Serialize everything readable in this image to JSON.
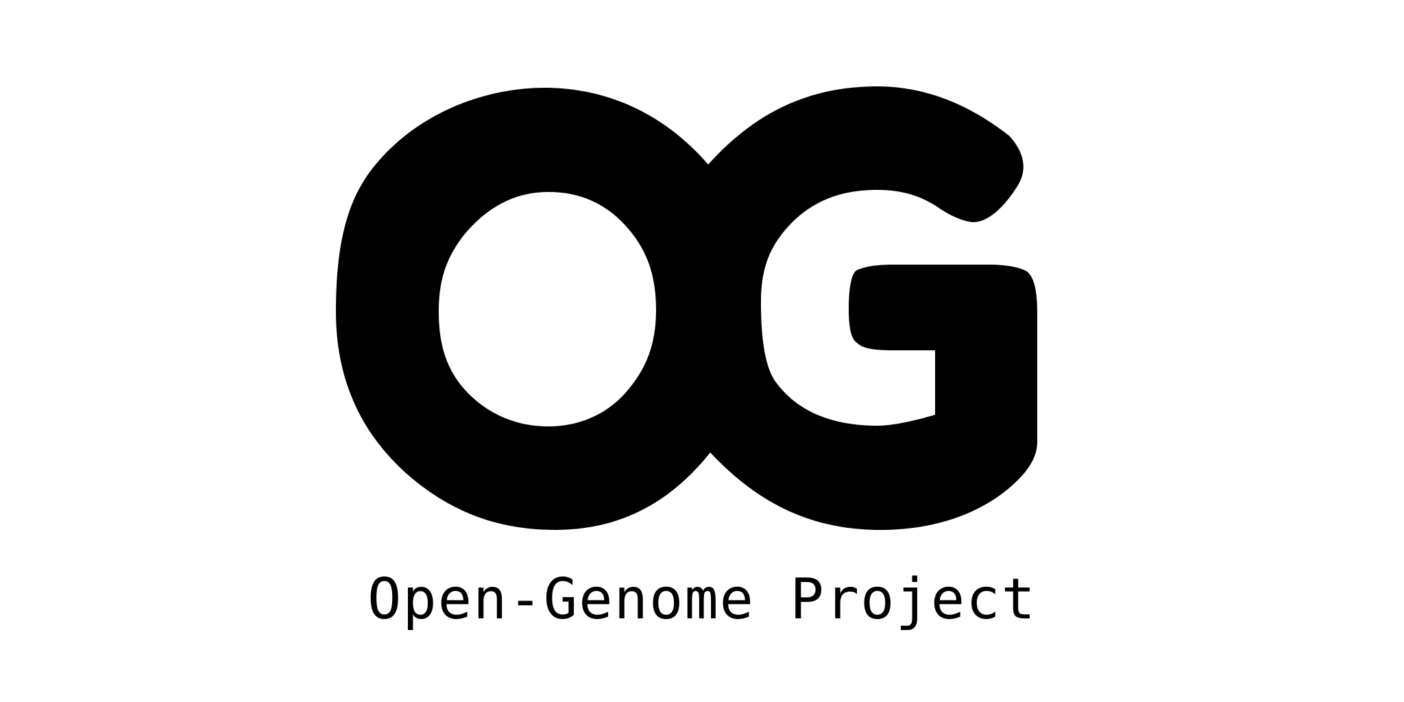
{
  "logo": {
    "letters": "OG",
    "wordmark": "Open-Genome Project",
    "color": "#000000",
    "background": "#ffffff"
  }
}
